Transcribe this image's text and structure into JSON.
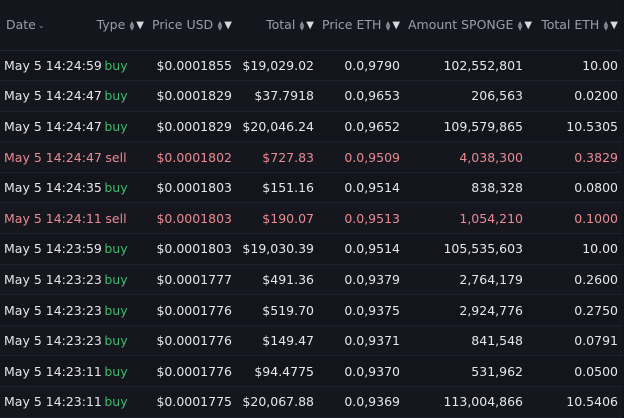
{
  "headers": {
    "date": "Date",
    "type": "Type",
    "price_usd": "Price USD",
    "total": "Total",
    "price_eth": "Price ETH",
    "amount": "Amount SPONGE",
    "total_eth": "Total ETH"
  },
  "colors": {
    "buy": "#3dbb6a",
    "sell": "#e98b93",
    "background": "#13141b"
  },
  "rows": [
    {
      "date": "May 5 14:24:59",
      "type": "buy",
      "price_usd": "$0.0001855",
      "total": "$19,029.02",
      "price_eth": "0.0,9790",
      "amount": "102,552,801",
      "total_eth": "10.00"
    },
    {
      "date": "May 5 14:24:47",
      "type": "buy",
      "price_usd": "$0.0001829",
      "total": "$37.7918",
      "price_eth": "0.0,9653",
      "amount": "206,563",
      "total_eth": "0.0200"
    },
    {
      "date": "May 5 14:24:47",
      "type": "buy",
      "price_usd": "$0.0001829",
      "total": "$20,046.24",
      "price_eth": "0.0,9652",
      "amount": "109,579,865",
      "total_eth": "10.5305"
    },
    {
      "date": "May 5 14:24:47",
      "type": "sell",
      "price_usd": "$0.0001802",
      "total": "$727.83",
      "price_eth": "0.0,9509",
      "amount": "4,038,300",
      "total_eth": "0.3829"
    },
    {
      "date": "May 5 14:24:35",
      "type": "buy",
      "price_usd": "$0.0001803",
      "total": "$151.16",
      "price_eth": "0.0,9514",
      "amount": "838,328",
      "total_eth": "0.0800"
    },
    {
      "date": "May 5 14:24:11",
      "type": "sell",
      "price_usd": "$0.0001803",
      "total": "$190.07",
      "price_eth": "0.0,9513",
      "amount": "1,054,210",
      "total_eth": "0.1000"
    },
    {
      "date": "May 5 14:23:59",
      "type": "buy",
      "price_usd": "$0.0001803",
      "total": "$19,030.39",
      "price_eth": "0.0,9514",
      "amount": "105,535,603",
      "total_eth": "10.00"
    },
    {
      "date": "May 5 14:23:23",
      "type": "buy",
      "price_usd": "$0.0001777",
      "total": "$491.36",
      "price_eth": "0.0,9379",
      "amount": "2,764,179",
      "total_eth": "0.2600"
    },
    {
      "date": "May 5 14:23:23",
      "type": "buy",
      "price_usd": "$0.0001776",
      "total": "$519.70",
      "price_eth": "0.0,9375",
      "amount": "2,924,776",
      "total_eth": "0.2750"
    },
    {
      "date": "May 5 14:23:23",
      "type": "buy",
      "price_usd": "$0.0001776",
      "total": "$149.47",
      "price_eth": "0.0,9371",
      "amount": "841,548",
      "total_eth": "0.0791"
    },
    {
      "date": "May 5 14:23:11",
      "type": "buy",
      "price_usd": "$0.0001776",
      "total": "$94.4775",
      "price_eth": "0.0,9370",
      "amount": "531,962",
      "total_eth": "0.0500"
    },
    {
      "date": "May 5 14:23:11",
      "type": "buy",
      "price_usd": "$0.0001775",
      "total": "$20,067.88",
      "price_eth": "0.0,9369",
      "amount": "113,004,866",
      "total_eth": "10.5406"
    }
  ]
}
